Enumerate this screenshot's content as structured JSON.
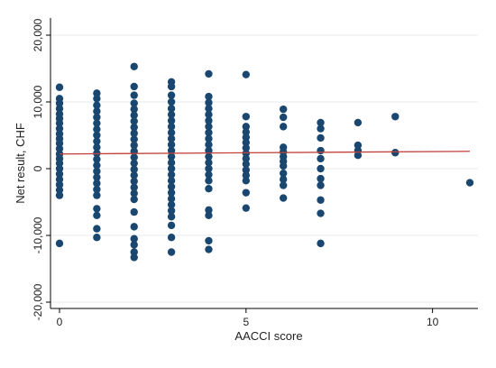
{
  "chart_data": {
    "type": "scatter",
    "xlabel": "AACCI score",
    "ylabel": "Net result, CHF",
    "xlim": [
      0,
      11
    ],
    "ylim": [
      -20000,
      20000
    ],
    "x_ticks": [
      0,
      5,
      10
    ],
    "x_tick_labels": [
      "0",
      "5",
      "10"
    ],
    "y_ticks": [
      -20000,
      -10000,
      0,
      10000,
      20000
    ],
    "y_tick_labels": [
      "-20,000",
      "-10,000",
      "0",
      "10,000",
      "20,000"
    ],
    "grid": "horizontal",
    "legend": "none",
    "marker_color": "#1a476f",
    "fit_line": {
      "x": [
        0,
        11
      ],
      "y": [
        2200,
        2600
      ],
      "color": "#c0403a"
    },
    "series": [
      {
        "values": [
          {
            "x": 0,
            "y": 12200
          },
          {
            "x": 0,
            "y": 10500
          },
          {
            "x": 0,
            "y": 9800
          },
          {
            "x": 0,
            "y": 9000
          },
          {
            "x": 0,
            "y": 8200
          },
          {
            "x": 0,
            "y": 7500
          },
          {
            "x": 0,
            "y": 6800
          },
          {
            "x": 0,
            "y": 6000
          },
          {
            "x": 0,
            "y": 5200
          },
          {
            "x": 0,
            "y": 4500
          },
          {
            "x": 0,
            "y": 3800
          },
          {
            "x": 0,
            "y": 3000
          },
          {
            "x": 0,
            "y": 2200
          },
          {
            "x": 0,
            "y": 1500
          },
          {
            "x": 0,
            "y": 800
          },
          {
            "x": 0,
            "y": 0
          },
          {
            "x": 0,
            "y": -800
          },
          {
            "x": 0,
            "y": -1600
          },
          {
            "x": 0,
            "y": -2400
          },
          {
            "x": 0,
            "y": -3200
          },
          {
            "x": 0,
            "y": -4000
          },
          {
            "x": 0,
            "y": -11200
          },
          {
            "x": 1,
            "y": 11300
          },
          {
            "x": 1,
            "y": 10500
          },
          {
            "x": 1,
            "y": 9500
          },
          {
            "x": 1,
            "y": 8600
          },
          {
            "x": 1,
            "y": 7700
          },
          {
            "x": 1,
            "y": 6800
          },
          {
            "x": 1,
            "y": 5900
          },
          {
            "x": 1,
            "y": 5000
          },
          {
            "x": 1,
            "y": 4100
          },
          {
            "x": 1,
            "y": 3200
          },
          {
            "x": 1,
            "y": 2300
          },
          {
            "x": 1,
            "y": 1400
          },
          {
            "x": 1,
            "y": 500
          },
          {
            "x": 1,
            "y": -400
          },
          {
            "x": 1,
            "y": -1300
          },
          {
            "x": 1,
            "y": -2200
          },
          {
            "x": 1,
            "y": -3100
          },
          {
            "x": 1,
            "y": -4000
          },
          {
            "x": 1,
            "y": -6000
          },
          {
            "x": 1,
            "y": -7000
          },
          {
            "x": 1,
            "y": -9000
          },
          {
            "x": 1,
            "y": -10300
          },
          {
            "x": 2,
            "y": 15300
          },
          {
            "x": 2,
            "y": 12300
          },
          {
            "x": 2,
            "y": 11000
          },
          {
            "x": 2,
            "y": 9800
          },
          {
            "x": 2,
            "y": 8900
          },
          {
            "x": 2,
            "y": 8000
          },
          {
            "x": 2,
            "y": 7100
          },
          {
            "x": 2,
            "y": 6200
          },
          {
            "x": 2,
            "y": 5300
          },
          {
            "x": 2,
            "y": 4400
          },
          {
            "x": 2,
            "y": 3500
          },
          {
            "x": 2,
            "y": 2600
          },
          {
            "x": 2,
            "y": 1700
          },
          {
            "x": 2,
            "y": 800
          },
          {
            "x": 2,
            "y": -100
          },
          {
            "x": 2,
            "y": -1000
          },
          {
            "x": 2,
            "y": -1900
          },
          {
            "x": 2,
            "y": -2800
          },
          {
            "x": 2,
            "y": -3700
          },
          {
            "x": 2,
            "y": -4600
          },
          {
            "x": 2,
            "y": -6500
          },
          {
            "x": 2,
            "y": -8700
          },
          {
            "x": 2,
            "y": -10500
          },
          {
            "x": 2,
            "y": -11400
          },
          {
            "x": 2,
            "y": -12500
          },
          {
            "x": 2,
            "y": -13300
          },
          {
            "x": 3,
            "y": 13000
          },
          {
            "x": 3,
            "y": 12300
          },
          {
            "x": 3,
            "y": 11000
          },
          {
            "x": 3,
            "y": 10000
          },
          {
            "x": 3,
            "y": 9000
          },
          {
            "x": 3,
            "y": 8100
          },
          {
            "x": 3,
            "y": 7200
          },
          {
            "x": 3,
            "y": 6300
          },
          {
            "x": 3,
            "y": 5400
          },
          {
            "x": 3,
            "y": 4500
          },
          {
            "x": 3,
            "y": 3600
          },
          {
            "x": 3,
            "y": 2700
          },
          {
            "x": 3,
            "y": 1800
          },
          {
            "x": 3,
            "y": 900
          },
          {
            "x": 3,
            "y": 0
          },
          {
            "x": 3,
            "y": -900
          },
          {
            "x": 3,
            "y": -1800
          },
          {
            "x": 3,
            "y": -2700
          },
          {
            "x": 3,
            "y": -3600
          },
          {
            "x": 3,
            "y": -4500
          },
          {
            "x": 3,
            "y": -5400
          },
          {
            "x": 3,
            "y": -6300
          },
          {
            "x": 3,
            "y": -7200
          },
          {
            "x": 3,
            "y": -8500
          },
          {
            "x": 3,
            "y": -10300
          },
          {
            "x": 3,
            "y": -12500
          },
          {
            "x": 4,
            "y": 14200
          },
          {
            "x": 4,
            "y": 10800
          },
          {
            "x": 4,
            "y": 9900
          },
          {
            "x": 4,
            "y": 9000
          },
          {
            "x": 4,
            "y": 8100
          },
          {
            "x": 4,
            "y": 7200
          },
          {
            "x": 4,
            "y": 6300
          },
          {
            "x": 4,
            "y": 5400
          },
          {
            "x": 4,
            "y": 4500
          },
          {
            "x": 4,
            "y": 3600
          },
          {
            "x": 4,
            "y": 2700
          },
          {
            "x": 4,
            "y": 1800
          },
          {
            "x": 4,
            "y": 900
          },
          {
            "x": 4,
            "y": 0
          },
          {
            "x": 4,
            "y": -900
          },
          {
            "x": 4,
            "y": -1800
          },
          {
            "x": 4,
            "y": -3000
          },
          {
            "x": 4,
            "y": -6200
          },
          {
            "x": 4,
            "y": -7000
          },
          {
            "x": 4,
            "y": -10800
          },
          {
            "x": 4,
            "y": -12100
          },
          {
            "x": 5,
            "y": 14100
          },
          {
            "x": 5,
            "y": 7800
          },
          {
            "x": 5,
            "y": 6300
          },
          {
            "x": 5,
            "y": 5500
          },
          {
            "x": 5,
            "y": 4700
          },
          {
            "x": 5,
            "y": 3900
          },
          {
            "x": 5,
            "y": 3100
          },
          {
            "x": 5,
            "y": 2300
          },
          {
            "x": 5,
            "y": 1500
          },
          {
            "x": 5,
            "y": 700
          },
          {
            "x": 5,
            "y": -200
          },
          {
            "x": 5,
            "y": -1000
          },
          {
            "x": 5,
            "y": -1800
          },
          {
            "x": 5,
            "y": -3600
          },
          {
            "x": 5,
            "y": -5900
          },
          {
            "x": 6,
            "y": 8900
          },
          {
            "x": 6,
            "y": 7700
          },
          {
            "x": 6,
            "y": 6300
          },
          {
            "x": 6,
            "y": 3200
          },
          {
            "x": 6,
            "y": 2500
          },
          {
            "x": 6,
            "y": 1800
          },
          {
            "x": 6,
            "y": 1100
          },
          {
            "x": 6,
            "y": 400
          },
          {
            "x": 6,
            "y": -700
          },
          {
            "x": 6,
            "y": -1600
          },
          {
            "x": 6,
            "y": -2500
          },
          {
            "x": 6,
            "y": -4400
          },
          {
            "x": 7,
            "y": 6900
          },
          {
            "x": 7,
            "y": 6000
          },
          {
            "x": 7,
            "y": 4600
          },
          {
            "x": 7,
            "y": 2700
          },
          {
            "x": 7,
            "y": 1500
          },
          {
            "x": 7,
            "y": 0
          },
          {
            "x": 7,
            "y": -1500
          },
          {
            "x": 7,
            "y": -2500
          },
          {
            "x": 7,
            "y": -4700
          },
          {
            "x": 7,
            "y": -6700
          },
          {
            "x": 7,
            "y": -11200
          },
          {
            "x": 8,
            "y": 6900
          },
          {
            "x": 8,
            "y": 3500
          },
          {
            "x": 8,
            "y": 2700
          },
          {
            "x": 8,
            "y": 2000
          },
          {
            "x": 9,
            "y": 7800
          },
          {
            "x": 9,
            "y": 2400
          },
          {
            "x": 11,
            "y": -2100
          }
        ]
      }
    ]
  }
}
